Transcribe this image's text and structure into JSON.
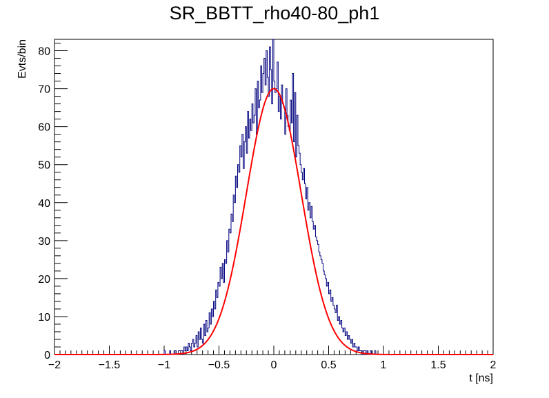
{
  "chart_data": {
    "type": "histogram",
    "title": "SR_BBTT_rho40-80_ph1",
    "xlabel": "t [ns]",
    "ylabel": "Evts/bin",
    "xlim": [
      -2,
      2
    ],
    "ylim": [
      0,
      83
    ],
    "x_ticks": [
      -2,
      -1.5,
      -1,
      -0.5,
      0,
      0.5,
      1,
      1.5,
      2
    ],
    "x_tick_labels": [
      "−2",
      "−1.5",
      "−1",
      "−0.5",
      "0",
      "0.5",
      "1",
      "1.5",
      "2"
    ],
    "y_ticks": [
      0,
      10,
      20,
      30,
      40,
      50,
      60,
      70,
      80
    ],
    "y_tick_labels": [
      "0",
      "10",
      "20",
      "30",
      "40",
      "50",
      "60",
      "70",
      "80"
    ],
    "bin_width": 0.01,
    "histogram": {
      "color": "#00007f",
      "bin_low_edges": [
        -1.0,
        -0.99,
        -0.98,
        -0.97,
        -0.96,
        -0.95,
        -0.94,
        -0.93,
        -0.92,
        -0.91,
        -0.9,
        -0.89,
        -0.88,
        -0.87,
        -0.86,
        -0.85,
        -0.84,
        -0.83,
        -0.82,
        -0.81,
        -0.8,
        -0.79,
        -0.78,
        -0.77,
        -0.76,
        -0.75,
        -0.74,
        -0.73,
        -0.72,
        -0.71,
        -0.7,
        -0.69,
        -0.68,
        -0.67,
        -0.66,
        -0.65,
        -0.64,
        -0.63,
        -0.62,
        -0.61,
        -0.6,
        -0.59,
        -0.58,
        -0.57,
        -0.56,
        -0.55,
        -0.54,
        -0.53,
        -0.52,
        -0.51,
        -0.5,
        -0.49,
        -0.48,
        -0.47,
        -0.46,
        -0.45,
        -0.44,
        -0.43,
        -0.42,
        -0.41,
        -0.4,
        -0.39,
        -0.38,
        -0.37,
        -0.36,
        -0.35,
        -0.34,
        -0.33,
        -0.32,
        -0.31,
        -0.3,
        -0.29,
        -0.28,
        -0.27,
        -0.26,
        -0.25,
        -0.24,
        -0.23,
        -0.22,
        -0.21,
        -0.2,
        -0.19,
        -0.18,
        -0.17,
        -0.16,
        -0.15,
        -0.14,
        -0.13,
        -0.12,
        -0.11,
        -0.1,
        -0.09,
        -0.08,
        -0.07,
        -0.06,
        -0.05,
        -0.04,
        -0.03,
        -0.02,
        -0.01,
        0.0,
        0.01,
        0.02,
        0.03,
        0.04,
        0.05,
        0.06,
        0.07,
        0.08,
        0.09,
        0.1,
        0.11,
        0.12,
        0.13,
        0.14,
        0.15,
        0.16,
        0.17,
        0.18,
        0.19,
        0.2,
        0.21,
        0.22,
        0.23,
        0.24,
        0.25,
        0.26,
        0.27,
        0.28,
        0.29,
        0.3,
        0.31,
        0.32,
        0.33,
        0.34,
        0.35,
        0.36,
        0.37,
        0.38,
        0.39,
        0.4,
        0.41,
        0.42,
        0.43,
        0.44,
        0.45,
        0.46,
        0.47,
        0.48,
        0.49,
        0.5,
        0.51,
        0.52,
        0.53,
        0.54,
        0.55,
        0.56,
        0.57,
        0.58,
        0.59,
        0.6,
        0.61,
        0.62,
        0.63,
        0.64,
        0.65,
        0.66,
        0.67,
        0.68,
        0.69,
        0.7,
        0.71,
        0.72,
        0.73,
        0.74,
        0.75,
        0.76,
        0.77,
        0.78,
        0.79,
        0.8,
        0.81,
        0.82,
        0.83,
        0.84,
        0.85,
        0.86,
        0.87,
        0.88,
        0.89,
        0.9,
        0.91,
        0.92,
        0.93,
        0.94,
        0.95,
        0.96,
        0.97,
        0.98,
        0.99
      ],
      "counts": [
        1,
        0,
        0,
        0,
        0,
        1,
        0,
        0,
        0,
        1,
        1,
        0,
        0,
        1,
        1,
        1,
        1,
        0,
        2,
        1,
        2,
        1,
        3,
        2,
        1,
        3,
        4,
        2,
        3,
        5,
        2,
        6,
        4,
        7,
        4,
        3,
        8,
        5,
        9,
        6,
        7,
        11,
        8,
        12,
        10,
        14,
        12,
        17,
        15,
        19,
        18,
        23,
        20,
        24,
        19,
        25,
        24,
        30,
        27,
        33,
        32,
        37,
        35,
        42,
        40,
        47,
        44,
        50,
        48,
        55,
        52,
        58,
        49,
        56,
        60,
        53,
        64,
        57,
        62,
        59,
        66,
        61,
        63,
        70,
        58,
        72,
        65,
        67,
        76,
        69,
        74,
        78,
        71,
        80,
        73,
        68,
        81,
        75,
        66,
        83,
        72,
        69,
        70,
        77,
        64,
        68,
        62,
        71,
        66,
        65,
        58,
        70,
        63,
        60,
        59,
        67,
        61,
        74,
        56,
        69,
        52,
        63,
        55,
        53,
        50,
        48,
        46,
        49,
        45,
        41,
        44,
        38,
        40,
        36,
        39,
        35,
        33,
        34,
        31,
        30,
        29,
        27,
        26,
        25,
        24,
        22,
        21,
        20,
        18,
        19,
        16,
        17,
        14,
        15,
        13,
        12,
        11,
        13,
        9,
        10,
        8,
        9,
        7,
        6,
        7,
        5,
        6,
        4,
        5,
        4,
        3,
        4,
        2,
        3,
        2,
        2,
        1,
        2,
        1,
        1,
        1,
        0,
        1,
        1,
        0,
        1,
        0,
        0,
        1,
        0,
        0,
        0,
        1,
        0,
        0,
        0,
        0,
        0,
        0,
        0,
        0,
        1,
        0,
        0,
        0,
        0
      ]
    },
    "fit": {
      "color": "#ff0000",
      "function": "gaus",
      "amplitude": 70,
      "mean": 0.0,
      "sigma": 0.25
    },
    "grid": false
  }
}
